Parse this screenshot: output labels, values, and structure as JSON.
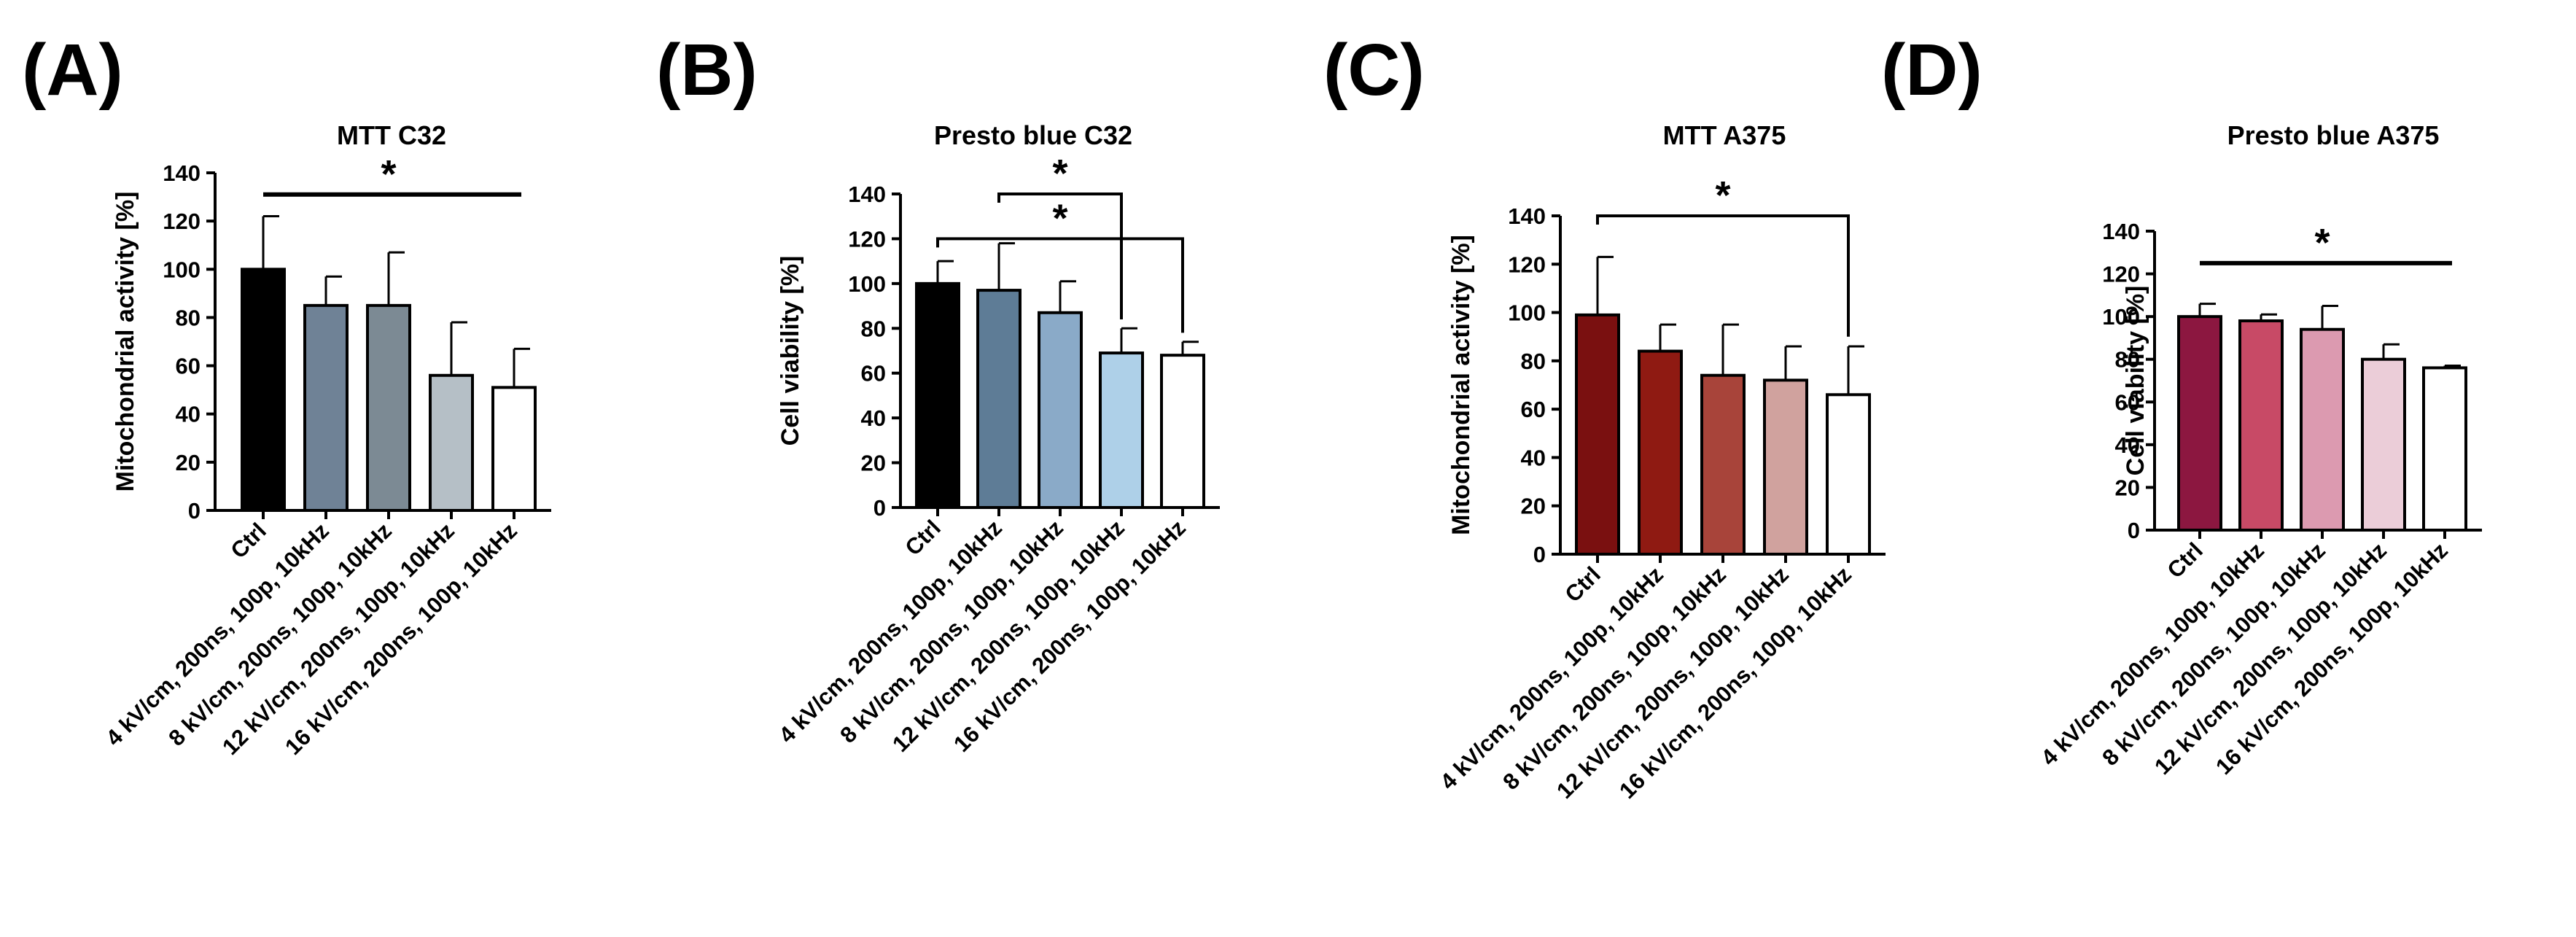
{
  "chart_data": [
    {
      "panel": "(A)",
      "type": "bar",
      "title": "MTT C32",
      "ylabel": "Mitochondrial activity [%]",
      "ylim": [
        0,
        140
      ],
      "yticks": [
        0,
        20,
        40,
        60,
        80,
        100,
        120,
        140
      ],
      "categories": [
        "Ctrl",
        "4 kV/cm, 200ns, 100p, 10kHz",
        "8 kV/cm, 200ns, 100p, 10kHz",
        "12 kV/cm, 200ns, 100p, 10kHz",
        "16 kV/cm, 200ns, 100p, 10kHz"
      ],
      "values": [
        100,
        85,
        85,
        56,
        51
      ],
      "errors": [
        22,
        12,
        22,
        22,
        16
      ],
      "colors": [
        "#000000",
        "#6f8296",
        "#7c8a94",
        "#b5bfc6",
        "#ffffff"
      ],
      "significance": [
        {
          "from": 0,
          "to": 4,
          "label": "*",
          "level": 131,
          "style": "line"
        }
      ]
    },
    {
      "panel": "(B)",
      "type": "bar",
      "title": "Presto blue C32",
      "ylabel": "Cell viability [%]",
      "ylim": [
        0,
        140
      ],
      "yticks": [
        0,
        20,
        40,
        60,
        80,
        100,
        120,
        140
      ],
      "categories": [
        "Ctrl",
        "4 kV/cm, 200ns, 100p, 10kHz",
        "8 kV/cm, 200ns, 100p, 10kHz",
        "12 kV/cm, 200ns, 100p, 10kHz",
        "16 kV/cm, 200ns, 100p, 10kHz"
      ],
      "values": [
        100,
        97,
        87,
        69,
        68
      ],
      "errors": [
        10,
        21,
        14,
        11,
        6
      ],
      "colors": [
        "#000000",
        "#5e7c96",
        "#8aaac8",
        "#aed0e8",
        "#ffffff"
      ],
      "significance": [
        {
          "from": 1,
          "to": 3,
          "label": "*",
          "level": 140,
          "style": "bracket"
        },
        {
          "from": 0,
          "to": 4,
          "label": "*",
          "level": 120,
          "style": "bracket"
        }
      ]
    },
    {
      "panel": "(C)",
      "type": "bar",
      "title": "MTT A375",
      "ylabel": "Mitochondrial activity [%]",
      "ylim": [
        0,
        140
      ],
      "yticks": [
        0,
        20,
        40,
        60,
        80,
        100,
        120,
        140
      ],
      "categories": [
        "Ctrl",
        "4 kV/cm, 200ns, 100p, 10kHz",
        "8 kV/cm, 200ns, 100p, 10kHz",
        "12 kV/cm, 200ns, 100p, 10kHz",
        "16 kV/cm, 200ns, 100p, 10kHz"
      ],
      "values": [
        99,
        84,
        74,
        72,
        66
      ],
      "errors": [
        24,
        11,
        21,
        14,
        20
      ],
      "colors": [
        "#7a1010",
        "#8f1a12",
        "#a8443a",
        "#d0a29e",
        "#ffffff"
      ],
      "significance": [
        {
          "from": 0,
          "to": 4,
          "label": "*",
          "level": 140,
          "style": "bracket"
        }
      ]
    },
    {
      "panel": "(D)",
      "type": "bar",
      "title": "Presto blue A375",
      "ylabel": "Cell viability [%]",
      "ylim": [
        0,
        140
      ],
      "yticks": [
        0,
        20,
        40,
        60,
        80,
        100,
        120,
        140
      ],
      "categories": [
        "Ctrl",
        "4 kV/cm, 200ns, 100p, 10kHz",
        "8 kV/cm, 200ns, 100p, 10kHz",
        "12 kV/cm, 200ns, 100p, 10kHz",
        "16 kV/cm, 200ns, 100p, 10kHz"
      ],
      "values": [
        100,
        98,
        94,
        80,
        76
      ],
      "errors": [
        6,
        3,
        11,
        7,
        1
      ],
      "colors": [
        "#8c1740",
        "#c84a66",
        "#dc9ab0",
        "#ebcdd8",
        "#ffffff"
      ],
      "significance": [
        {
          "from": 0,
          "to": 4,
          "label": "*",
          "level": 125,
          "style": "line"
        }
      ]
    }
  ]
}
